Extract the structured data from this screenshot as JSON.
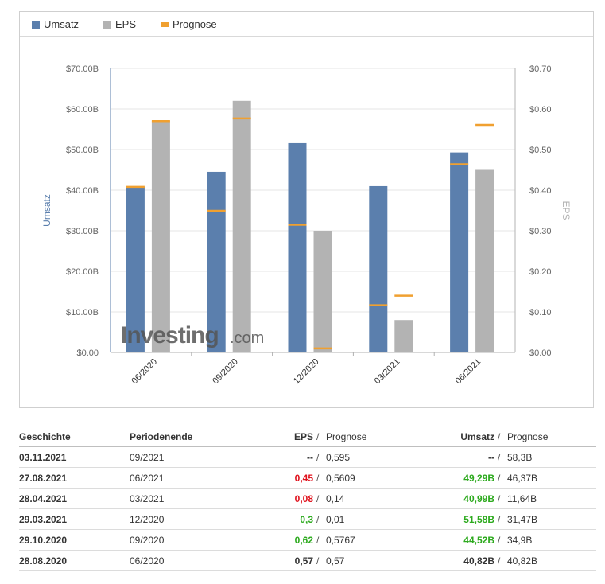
{
  "chart_data": {
    "type": "bar",
    "categories": [
      "06/2020",
      "09/2020",
      "12/2020",
      "03/2021",
      "06/2021"
    ],
    "series": [
      {
        "name": "Umsatz",
        "axis": "left",
        "color": "#5b7fad",
        "values": [
          40.82,
          44.52,
          51.58,
          40.99,
          49.29
        ]
      },
      {
        "name": "EPS",
        "axis": "right",
        "color": "#b3b3b3",
        "values": [
          0.57,
          0.62,
          0.3,
          0.08,
          0.45
        ]
      },
      {
        "name": "Prognose",
        "color": "#f0a030",
        "revenue_forecast": [
          40.82,
          34.9,
          31.47,
          11.64,
          46.37
        ],
        "eps_forecast": [
          0.57,
          0.5767,
          0.01,
          0.14,
          0.5609
        ]
      }
    ],
    "left_axis": {
      "label": "Umsatz",
      "min": 0,
      "max": 70,
      "step": 10,
      "ticks": [
        "$0.00",
        "$10.00B",
        "$20.00B",
        "$30.00B",
        "$40.00B",
        "$50.00B",
        "$60.00B",
        "$70.00B"
      ]
    },
    "right_axis": {
      "label": "EPS",
      "min": 0,
      "max": 0.7,
      "step": 0.1,
      "ticks": [
        "$0.00",
        "$0.10",
        "$0.20",
        "$0.30",
        "$0.40",
        "$0.50",
        "$0.60",
        "$0.70"
      ]
    },
    "legend": [
      "Umsatz",
      "EPS",
      "Prognose"
    ],
    "watermark": "Investing.com"
  },
  "legend": {
    "umsatz": "Umsatz",
    "eps": "EPS",
    "prognose": "Prognose",
    "colors": {
      "umsatz": "#5b7fad",
      "eps": "#b3b3b3",
      "prognose": "#f0a030"
    }
  },
  "table": {
    "headers": {
      "history": "Geschichte",
      "period_end": "Periodenende",
      "eps": "EPS",
      "sep": "/",
      "forecast": "Prognose",
      "revenue": "Umsatz"
    },
    "rows": [
      {
        "date": "03.11.2021",
        "period": "09/2021",
        "eps": "--",
        "eps_status": "neu",
        "eps_forecast": "0,595",
        "revenue": "--",
        "revenue_status": "neu",
        "revenue_forecast": "58,3B"
      },
      {
        "date": "27.08.2021",
        "period": "06/2021",
        "eps": "0,45",
        "eps_status": "neg",
        "eps_forecast": "0,5609",
        "revenue": "49,29B",
        "revenue_status": "pos",
        "revenue_forecast": "46,37B"
      },
      {
        "date": "28.04.2021",
        "period": "03/2021",
        "eps": "0,08",
        "eps_status": "neg",
        "eps_forecast": "0,14",
        "revenue": "40,99B",
        "revenue_status": "pos",
        "revenue_forecast": "11,64B"
      },
      {
        "date": "29.03.2021",
        "period": "12/2020",
        "eps": "0,3",
        "eps_status": "pos",
        "eps_forecast": "0,01",
        "revenue": "51,58B",
        "revenue_status": "pos",
        "revenue_forecast": "31,47B"
      },
      {
        "date": "29.10.2020",
        "period": "09/2020",
        "eps": "0,62",
        "eps_status": "pos",
        "eps_forecast": "0,5767",
        "revenue": "44,52B",
        "revenue_status": "pos",
        "revenue_forecast": "34,9B"
      },
      {
        "date": "28.08.2020",
        "period": "06/2020",
        "eps": "0,57",
        "eps_status": "neu",
        "eps_forecast": "0,57",
        "revenue": "40,82B",
        "revenue_status": "neu",
        "revenue_forecast": "40,82B"
      }
    ]
  }
}
